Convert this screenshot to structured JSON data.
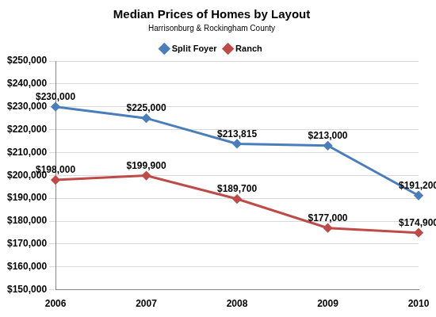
{
  "chart_data": {
    "type": "line",
    "title": "Median Prices of Homes by Layout",
    "subtitle": "Harrisonburg & Rockingham County",
    "categories": [
      "2006",
      "2007",
      "2008",
      "2009",
      "2010"
    ],
    "series": [
      {
        "name": "Split Foyer",
        "color": "#4a7ebb",
        "marker": "diamond",
        "line_style": "solid",
        "values": [
          230000,
          225000,
          213815,
          213000,
          191200
        ],
        "value_labels": [
          "$230,000",
          "$225,000",
          "$213,815",
          "$213,000",
          "$191,200"
        ]
      },
      {
        "name": "Ranch",
        "color": "#be4b48",
        "marker": "diamond",
        "line_style": "solid",
        "values": [
          198000,
          199900,
          189700,
          177000,
          174900
        ],
        "value_labels": [
          "$198,000",
          "$199,900",
          "$189,700",
          "$177,000",
          "$174,900"
        ]
      }
    ],
    "ylim": [
      150000,
      250000
    ],
    "yticks": [
      {
        "value": 150000,
        "label": "$150,000"
      },
      {
        "value": 160000,
        "label": "$160,000"
      },
      {
        "value": 170000,
        "label": "$170,000"
      },
      {
        "value": 180000,
        "label": "$180,000"
      },
      {
        "value": 190000,
        "label": "$190,000"
      },
      {
        "value": 200000,
        "label": "$200,000"
      },
      {
        "value": 210000,
        "label": "$210,000"
      },
      {
        "value": 220000,
        "label": "$220,000"
      },
      {
        "value": 230000,
        "label": "$230,000"
      },
      {
        "value": 240000,
        "label": "$240,000"
      },
      {
        "value": 250000,
        "label": "$250,000"
      }
    ],
    "grid": true,
    "legend": "top",
    "data_labels": true
  }
}
